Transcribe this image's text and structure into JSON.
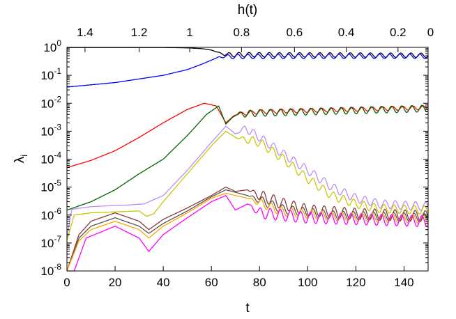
{
  "chart_data": {
    "type": "line",
    "xlabel": "t",
    "x2label": "h(t)",
    "ylabel": "λ",
    "ylabel_subscript": "i",
    "xlim": [
      0,
      150
    ],
    "ylim": [
      1e-08,
      1
    ],
    "yscale": "log",
    "x_ticks": [
      0,
      20,
      40,
      60,
      80,
      100,
      120,
      140
    ],
    "x_tick_labels": [
      "0",
      "20",
      "40",
      "60",
      "80",
      "100",
      "120",
      "140"
    ],
    "x2_tick_labels": [
      "1.4",
      "1.2",
      "1",
      "0.8",
      "0.6",
      "0.4",
      "0.2",
      "0"
    ],
    "x2_tick_positions_t": [
      7.5,
      30,
      51,
      72.5,
      94.5,
      116,
      137.5,
      151
    ],
    "y_ticks": [
      {
        "base": "10",
        "exp": "0",
        "value": 1
      },
      {
        "base": "10",
        "exp": "-1",
        "value": 0.1
      },
      {
        "base": "10",
        "exp": "-2",
        "value": 0.01
      },
      {
        "base": "10",
        "exp": "-3",
        "value": 0.001
      },
      {
        "base": "10",
        "exp": "-4",
        "value": 0.0001
      },
      {
        "base": "10",
        "exp": "-5",
        "value": 1e-05
      },
      {
        "base": "10",
        "exp": "-6",
        "value": 1e-06
      },
      {
        "base": "10",
        "exp": "-7",
        "value": 1e-07
      },
      {
        "base": "10",
        "exp": "-8",
        "value": 1e-08
      }
    ],
    "grid": false,
    "legend": "none",
    "series": [
      {
        "color": "#000000",
        "osc_amp": 0.08,
        "osc_from": 62,
        "points": [
          [
            0,
            0.99
          ],
          [
            40,
            0.99
          ],
          [
            50,
            0.96
          ],
          [
            56,
            0.9
          ],
          [
            60,
            0.8
          ],
          [
            63,
            0.65
          ],
          [
            66,
            0.55
          ],
          [
            150,
            0.52
          ]
        ]
      },
      {
        "color": "#0000ff",
        "osc_amp": 0.08,
        "osc_from": 62,
        "points": [
          [
            0,
            0.038
          ],
          [
            20,
            0.055
          ],
          [
            40,
            0.1
          ],
          [
            50,
            0.16
          ],
          [
            56,
            0.25
          ],
          [
            60,
            0.35
          ],
          [
            63,
            0.45
          ],
          [
            66,
            0.47
          ],
          [
            150,
            0.48
          ]
        ]
      },
      {
        "color": "#ff0000",
        "osc_amp": 0.07,
        "osc_from": 68,
        "points": [
          [
            0,
            5e-05
          ],
          [
            10,
            9e-05
          ],
          [
            20,
            0.0002
          ],
          [
            30,
            0.0006
          ],
          [
            40,
            0.002
          ],
          [
            50,
            0.006
          ],
          [
            57,
            0.01
          ],
          [
            62,
            0.008
          ],
          [
            66,
            0.002
          ],
          [
            70,
            0.004
          ],
          [
            80,
            0.005
          ],
          [
            150,
            0.007
          ]
        ]
      },
      {
        "color": "#006400",
        "osc_amp": 0.12,
        "osc_from": 68,
        "points": [
          [
            0,
            1.5e-06
          ],
          [
            10,
            3e-06
          ],
          [
            20,
            8e-06
          ],
          [
            30,
            3e-05
          ],
          [
            40,
            0.0001
          ],
          [
            50,
            0.0007
          ],
          [
            58,
            0.004
          ],
          [
            63,
            0.008
          ],
          [
            66,
            0.0018
          ],
          [
            70,
            0.004
          ],
          [
            80,
            0.0045
          ],
          [
            150,
            0.0065
          ]
        ]
      },
      {
        "color": "#c08aff",
        "osc_amp": 0.15,
        "osc_from": 70,
        "points": [
          [
            0,
            1.5e-07
          ],
          [
            2,
            1.6e-06
          ],
          [
            10,
            2e-06
          ],
          [
            20,
            2.2e-06
          ],
          [
            26,
            2.3e-06
          ],
          [
            32,
            2.5e-06
          ],
          [
            40,
            5e-06
          ],
          [
            50,
            4e-05
          ],
          [
            60,
            0.0004
          ],
          [
            66,
            0.0015
          ],
          [
            70,
            0.0008
          ],
          [
            74,
            0.0013
          ],
          [
            80,
            0.0006
          ],
          [
            90,
            0.00015
          ],
          [
            100,
            4e-05
          ],
          [
            110,
            1e-05
          ],
          [
            120,
            4e-06
          ],
          [
            130,
            2.5e-06
          ],
          [
            150,
            2e-06
          ]
        ]
      },
      {
        "color": "#c8c800",
        "osc_amp": 0.15,
        "osc_from": 70,
        "points": [
          [
            0,
            1.2e-07
          ],
          [
            3,
            1e-06
          ],
          [
            10,
            1.2e-06
          ],
          [
            20,
            1.3e-06
          ],
          [
            30,
            1.4e-06
          ],
          [
            33,
            9e-07
          ],
          [
            36,
            1.1e-06
          ],
          [
            40,
            3e-06
          ],
          [
            50,
            3e-05
          ],
          [
            60,
            0.0003
          ],
          [
            66,
            0.001
          ],
          [
            70,
            0.0006
          ],
          [
            80,
            0.0004
          ],
          [
            90,
            0.0001
          ],
          [
            100,
            2e-05
          ],
          [
            110,
            5e-06
          ],
          [
            120,
            2.5e-06
          ],
          [
            130,
            1.7e-06
          ],
          [
            150,
            1.5e-06
          ]
        ]
      },
      {
        "color": "#8b3a3a",
        "osc_amp": 0.2,
        "osc_from": 75,
        "points": [
          [
            0,
            1e-08
          ],
          [
            5,
            2e-07
          ],
          [
            10,
            6e-07
          ],
          [
            20,
            1.2e-06
          ],
          [
            30,
            6e-07
          ],
          [
            34,
            3e-07
          ],
          [
            40,
            7e-07
          ],
          [
            50,
            1.8e-06
          ],
          [
            60,
            5e-06
          ],
          [
            66,
            1e-05
          ],
          [
            70,
            7e-06
          ],
          [
            75,
            8e-06
          ],
          [
            80,
            5e-06
          ],
          [
            90,
            2.5e-06
          ],
          [
            100,
            1.5e-06
          ],
          [
            120,
            1.1e-06
          ],
          [
            150,
            9e-07
          ]
        ]
      },
      {
        "color": "#555555",
        "osc_amp": 0.15,
        "osc_from": 75,
        "points": [
          [
            0,
            1e-08
          ],
          [
            5,
            1.5e-07
          ],
          [
            10,
            4e-07
          ],
          [
            20,
            8e-07
          ],
          [
            30,
            4e-07
          ],
          [
            34,
            2.2e-07
          ],
          [
            40,
            5e-07
          ],
          [
            50,
            1.4e-06
          ],
          [
            60,
            4.5e-06
          ],
          [
            66,
            8e-06
          ],
          [
            75,
            5e-06
          ],
          [
            90,
            1.6e-06
          ],
          [
            110,
            1e-06
          ],
          [
            150,
            8e-07
          ]
        ]
      },
      {
        "color": "#ffa500",
        "osc_amp": 0.15,
        "osc_from": 75,
        "points": [
          [
            0,
            1e-08
          ],
          [
            5,
            1.2e-07
          ],
          [
            10,
            3e-07
          ],
          [
            20,
            6e-07
          ],
          [
            30,
            3e-07
          ],
          [
            34,
            1.5e-07
          ],
          [
            40,
            4e-07
          ],
          [
            50,
            1.2e-06
          ],
          [
            60,
            4e-06
          ],
          [
            66,
            6e-06
          ],
          [
            75,
            4e-06
          ],
          [
            90,
            1.3e-06
          ],
          [
            110,
            9e-07
          ],
          [
            150,
            7e-07
          ]
        ]
      },
      {
        "color": "#ff00ff",
        "osc_amp": 0.2,
        "osc_from": 75,
        "points": [
          [
            0,
            1e-08
          ],
          [
            3,
            1e-08
          ],
          [
            8,
            1.5e-07
          ],
          [
            20,
            4e-07
          ],
          [
            30,
            1.5e-07
          ],
          [
            34,
            5e-08
          ],
          [
            40,
            2e-07
          ],
          [
            50,
            8e-07
          ],
          [
            60,
            3e-06
          ],
          [
            66,
            5e-06
          ],
          [
            70,
            1.5e-06
          ],
          [
            75,
            2.5e-06
          ],
          [
            80,
            1.2e-06
          ],
          [
            100,
            8e-07
          ],
          [
            150,
            6e-07
          ]
        ]
      }
    ]
  }
}
